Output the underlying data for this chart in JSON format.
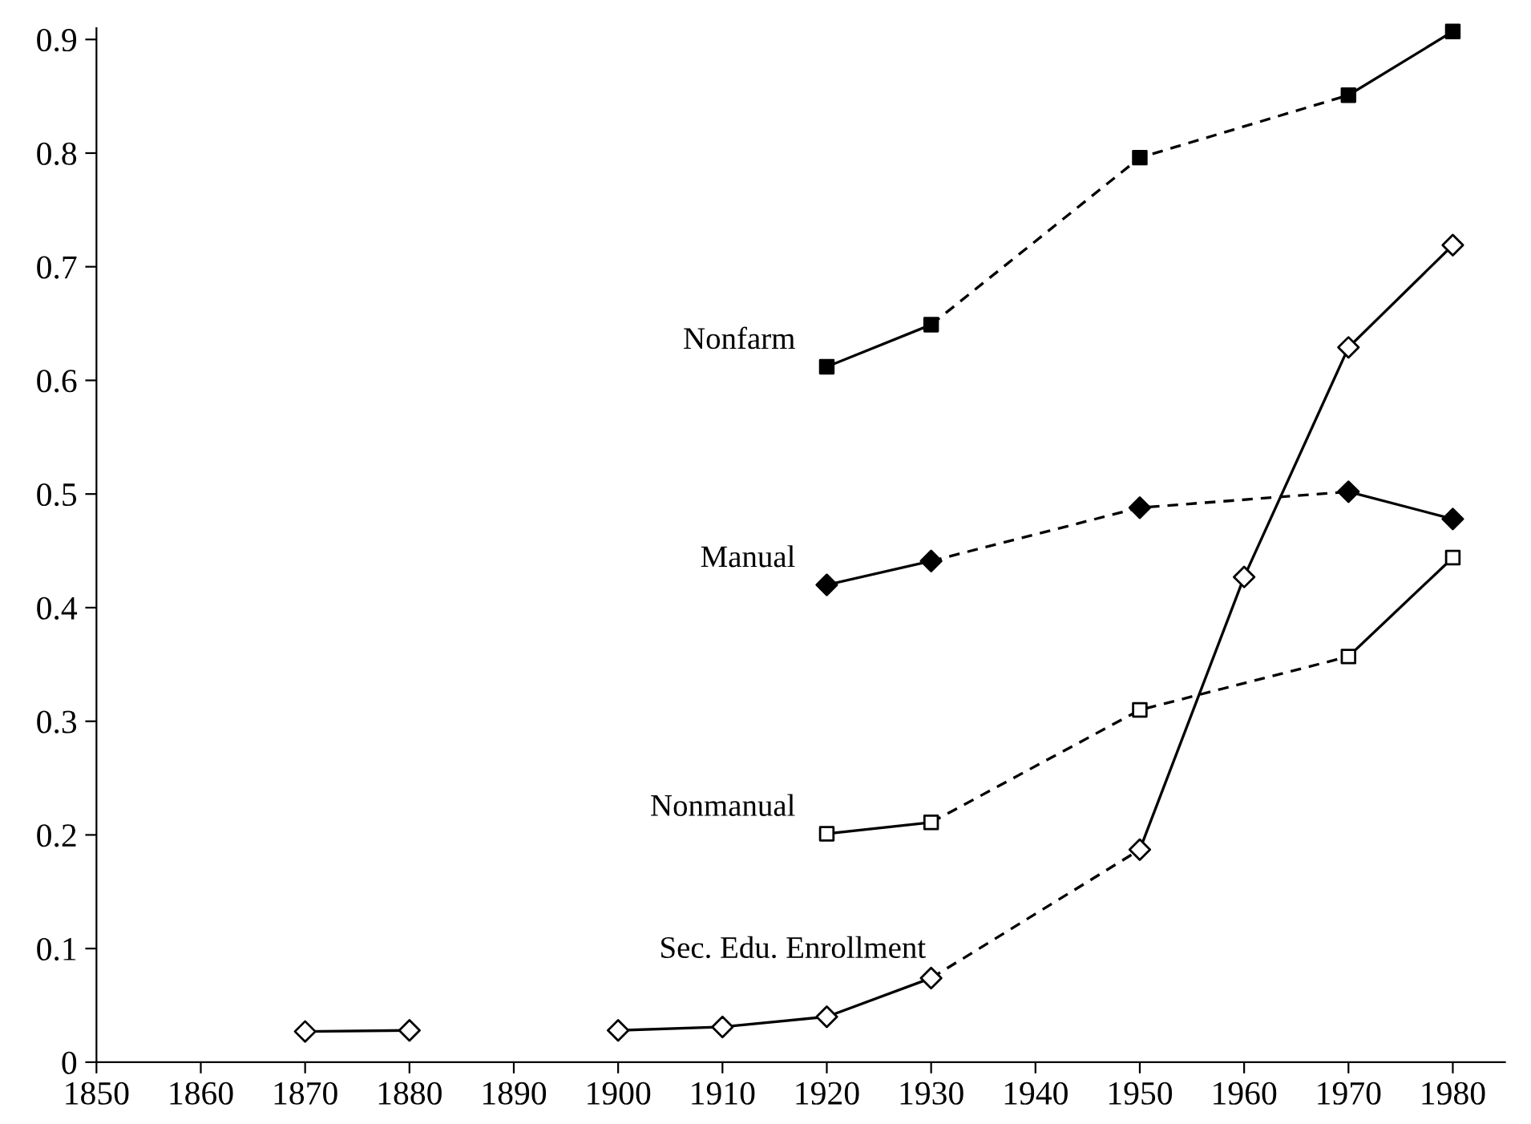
{
  "chart_data": {
    "type": "line",
    "series": [
      {
        "color": "#000000",
        "line_style": "solid",
        "x": [
          1920,
          1930
        ],
        "values": [
          0.612,
          0.649
        ]
      },
      {
        "color": "#000000",
        "line_style": "dashed",
        "x": [
          1930,
          1950,
          1970
        ],
        "values": [
          0.649,
          0.796,
          0.851
        ]
      },
      {
        "color": "#000000",
        "line_style": "solid",
        "x": [
          1970,
          1980
        ],
        "values": [
          0.851,
          0.907
        ]
      },
      {
        "color": "#000000",
        "line_style": "solid",
        "x": [
          1920,
          1930
        ],
        "values": [
          0.42,
          0.441
        ]
      },
      {
        "color": "#000000",
        "line_style": "dashed",
        "x": [
          1930,
          1950,
          1970
        ],
        "values": [
          0.441,
          0.488,
          0.502
        ]
      },
      {
        "color": "#000000",
        "line_style": "solid",
        "x": [
          1970,
          1980
        ],
        "values": [
          0.502,
          0.478
        ]
      },
      {
        "color": "#000000",
        "line_style": "solid",
        "x": [
          1920,
          1930
        ],
        "values": [
          0.201,
          0.211
        ]
      },
      {
        "color": "#000000",
        "line_style": "dashed",
        "x": [
          1930,
          1950,
          1970
        ],
        "values": [
          0.211,
          0.31,
          0.357
        ]
      },
      {
        "color": "#000000",
        "line_style": "solid",
        "x": [
          1970,
          1980
        ],
        "values": [
          0.357,
          0.444
        ]
      },
      {
        "color": "#000000",
        "line_style": "solid",
        "x": [
          1870,
          1880
        ],
        "values": [
          0.027,
          0.028
        ]
      },
      {
        "color": "#000000",
        "line_style": "solid",
        "x": [
          1900,
          1910,
          1920,
          1930
        ],
        "values": [
          0.028,
          0.031,
          0.04,
          0.074
        ]
      },
      {
        "color": "#000000",
        "line_style": "dashed",
        "x": [
          1930,
          1950
        ],
        "values": [
          0.074,
          0.187
        ]
      },
      {
        "color": "#000000",
        "line_style": "solid",
        "x": [
          1950,
          1960,
          1970,
          1980
        ],
        "values": [
          0.187,
          0.427,
          0.629,
          0.719
        ]
      },
      {
        "type": "scatter",
        "name": "Nonfarm",
        "color": "#000000",
        "marker": "square",
        "x": [
          1920,
          1930,
          1950,
          1970,
          1980
        ],
        "values": [
          0.612,
          0.649,
          0.796,
          0.851,
          0.907
        ]
      },
      {
        "type": "scatter",
        "name": "Manual",
        "color": "#000000",
        "marker": "diamond",
        "x": [
          1920,
          1930,
          1950,
          1970,
          1980
        ],
        "values": [
          0.42,
          0.441,
          0.488,
          0.502,
          0.478
        ]
      },
      {
        "type": "scatter",
        "name": "Nonmanual",
        "color": "#ffffff",
        "marker": "square",
        "x": [
          1920,
          1930,
          1950,
          1970,
          1980
        ],
        "values": [
          0.201,
          0.211,
          0.31,
          0.357,
          0.444
        ]
      },
      {
        "type": "scatter",
        "name": "Sec. Edu. Enrollment",
        "color": "#ffffff",
        "marker": "diamond",
        "x": [
          1870,
          1880,
          1900,
          1910,
          1920,
          1930,
          1950,
          1960,
          1970,
          1980
        ],
        "values": [
          0.027,
          0.028,
          0.028,
          0.031,
          0.04,
          0.074,
          0.187,
          0.427,
          0.629,
          0.719
        ]
      }
    ],
    "xlim": [
      1850,
      1985
    ],
    "xticks": [
      1850,
      1860,
      1870,
      1880,
      1890,
      1900,
      1910,
      1920,
      1930,
      1940,
      1950,
      1960,
      1970,
      1980
    ],
    "ylim": [
      0,
      0.91
    ],
    "yticks": [
      0,
      0.1,
      0.2,
      0.3,
      0.4,
      0.5,
      0.6,
      0.7,
      0.8,
      0.9
    ],
    "grid": false,
    "legend": false
  }
}
